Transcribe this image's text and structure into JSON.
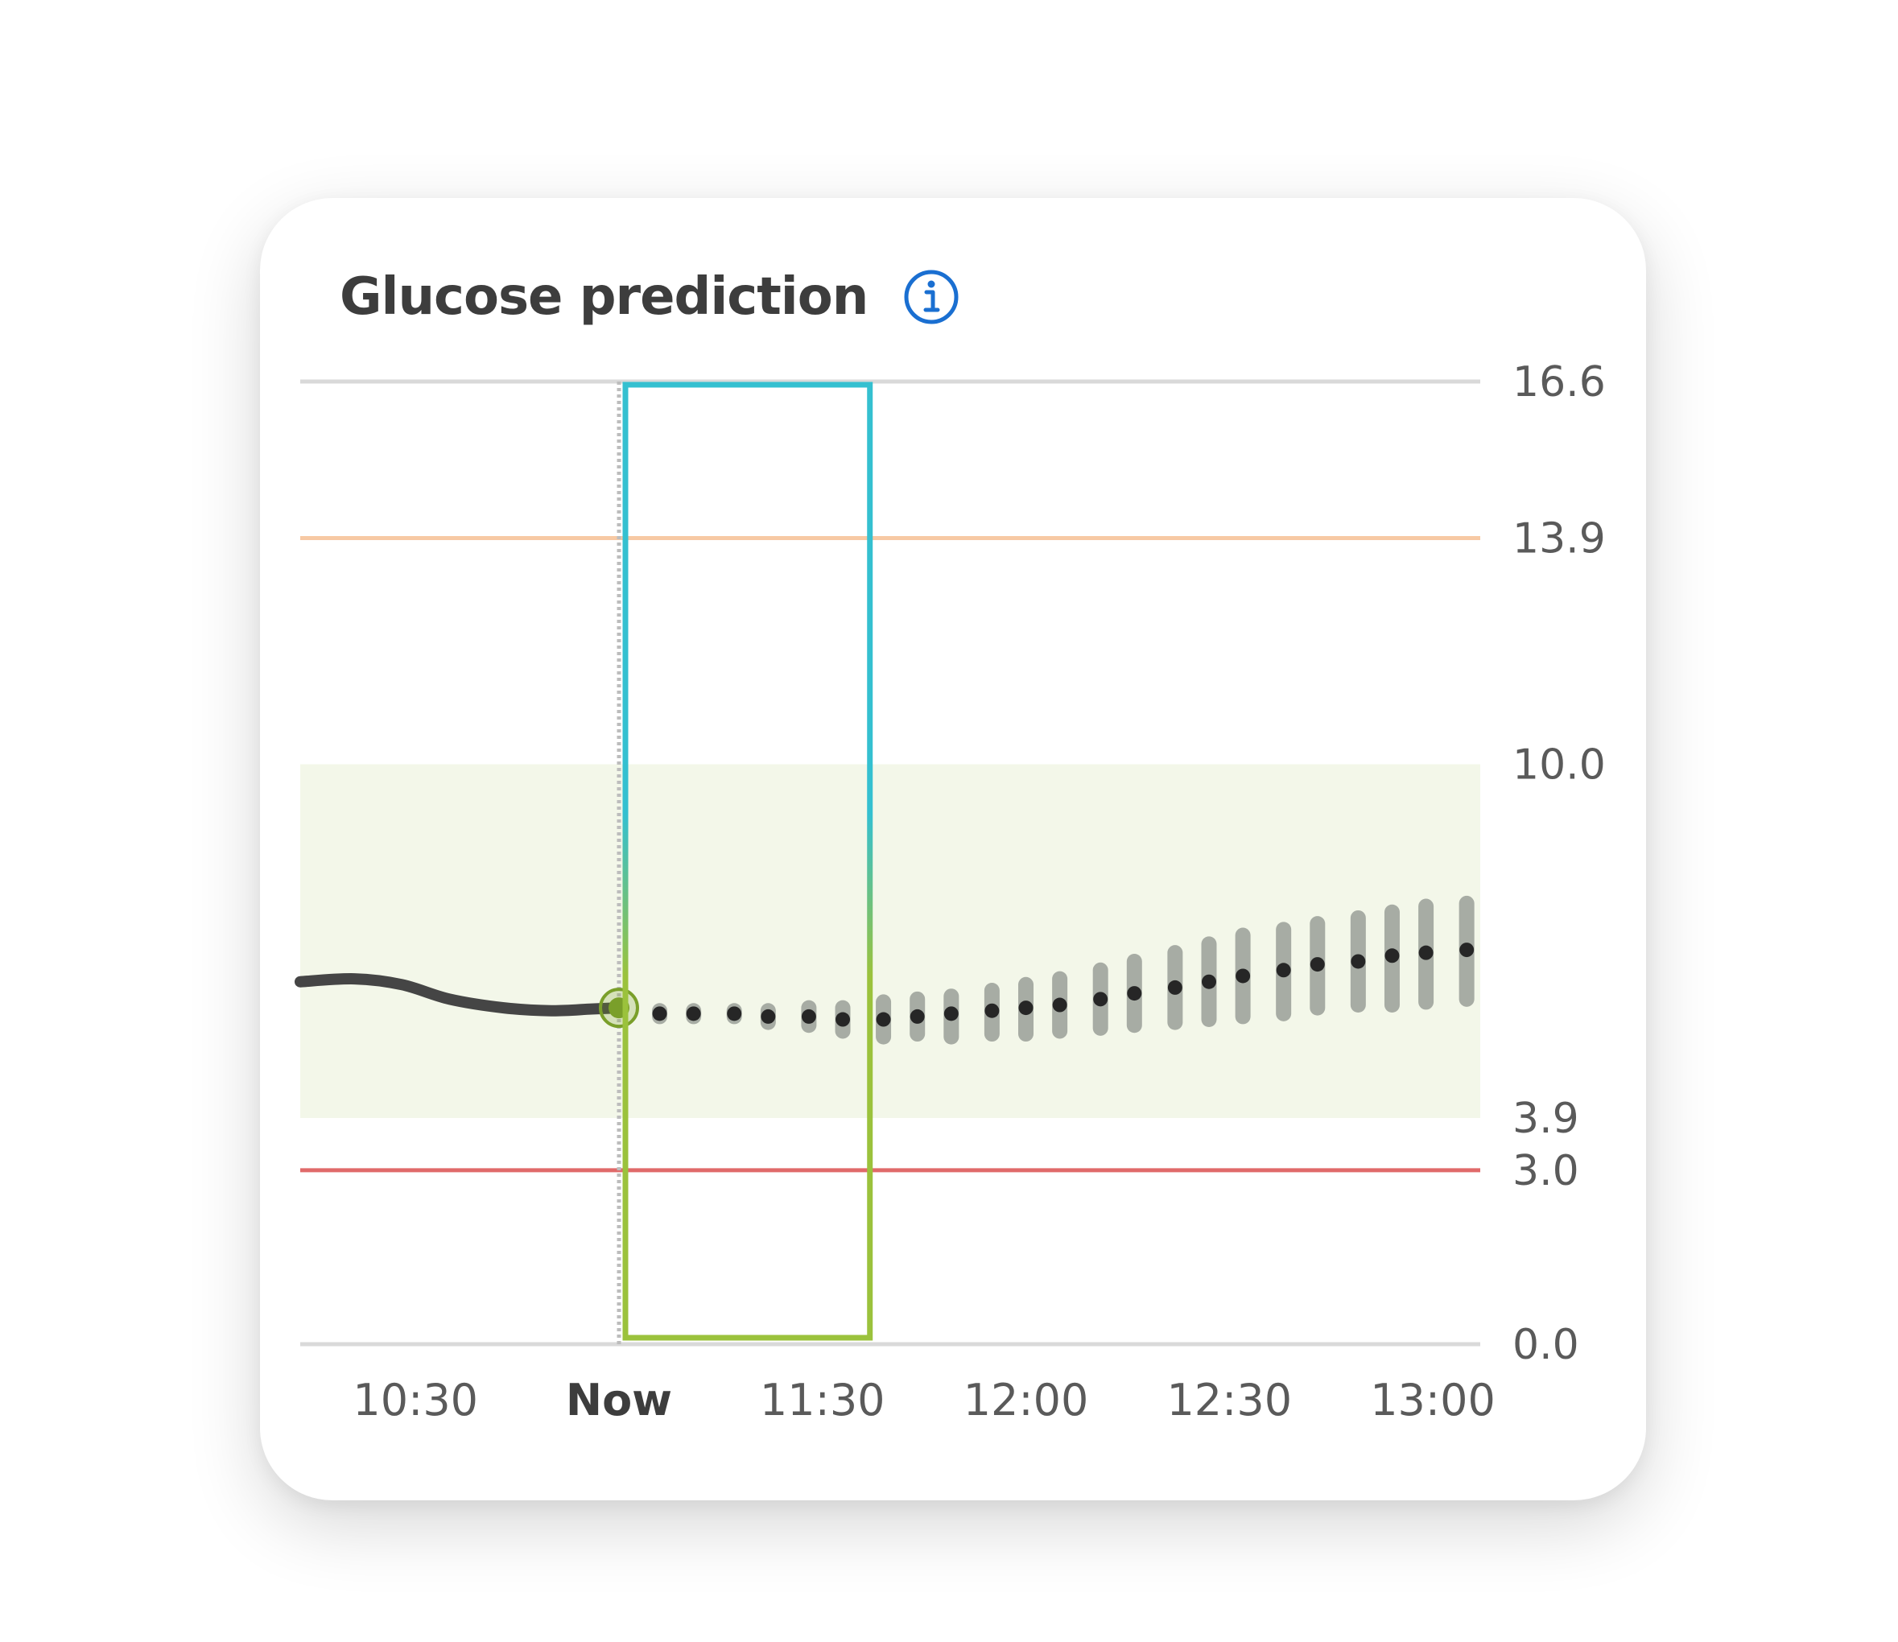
{
  "card": {
    "title": "Glucose prediction",
    "info_icon": "info-icon"
  },
  "colors": {
    "title_text": "#3d3d3d",
    "info_icon": "#1a6fd1",
    "target_band": "#f3f7e9",
    "high_line": "#f7c9a4",
    "low_line": "#e06a6a",
    "grid_line": "#d9d9d9",
    "now_line": "#bdbdbd",
    "history_line": "#454545",
    "prediction_dot": "#262626",
    "prediction_band": "#a7aca4",
    "current_marker": "#7a9f2a",
    "highlight_top": "#34c0d0",
    "highlight_bottom": "#9bc23c"
  },
  "chart_data": {
    "type": "line",
    "title": "Glucose prediction",
    "xlabel": "",
    "ylabel": "",
    "ylim": [
      0.0,
      16.6
    ],
    "y_ticks": [
      "16.6",
      "13.9",
      "10.0",
      "3.9",
      "3.0",
      "0.0"
    ],
    "x_ticks": [
      "10:30",
      "Now",
      "11:30",
      "12:00",
      "12:30",
      "13:00"
    ],
    "x_tick_minutes": [
      630,
      660,
      690,
      720,
      750,
      780
    ],
    "xlim_minutes": [
      613,
      787
    ],
    "target_range": [
      3.9,
      10.0
    ],
    "high_threshold": 13.9,
    "low_threshold": 3.0,
    "history": {
      "x_minutes": [
        613,
        621,
        628,
        635,
        643,
        650,
        656,
        660
      ],
      "y": [
        6.25,
        6.3,
        6.2,
        5.95,
        5.8,
        5.75,
        5.78,
        5.8
      ]
    },
    "current": {
      "x_minutes": 660,
      "y": 5.8
    },
    "prediction": {
      "x_minutes": [
        666,
        671,
        677,
        682,
        688,
        693,
        699,
        704,
        709,
        715,
        720,
        725,
        731,
        736,
        742,
        747,
        752,
        758,
        763,
        769,
        774,
        779,
        785
      ],
      "y": [
        5.7,
        5.7,
        5.7,
        5.65,
        5.65,
        5.6,
        5.6,
        5.65,
        5.7,
        5.75,
        5.8,
        5.85,
        5.95,
        6.05,
        6.15,
        6.25,
        6.35,
        6.45,
        6.55,
        6.6,
        6.7,
        6.75,
        6.8
      ],
      "lower": [
        5.65,
        5.65,
        5.65,
        5.55,
        5.5,
        5.4,
        5.3,
        5.35,
        5.3,
        5.35,
        5.35,
        5.4,
        5.45,
        5.5,
        5.55,
        5.6,
        5.65,
        5.7,
        5.8,
        5.85,
        5.85,
        5.9,
        5.95
      ],
      "upper": [
        5.75,
        5.75,
        5.75,
        5.75,
        5.8,
        5.8,
        5.9,
        5.95,
        6.0,
        6.1,
        6.2,
        6.3,
        6.45,
        6.6,
        6.75,
        6.9,
        7.05,
        7.15,
        7.25,
        7.35,
        7.45,
        7.55,
        7.6
      ]
    },
    "highlight_window_minutes": [
      660,
      697
    ]
  }
}
